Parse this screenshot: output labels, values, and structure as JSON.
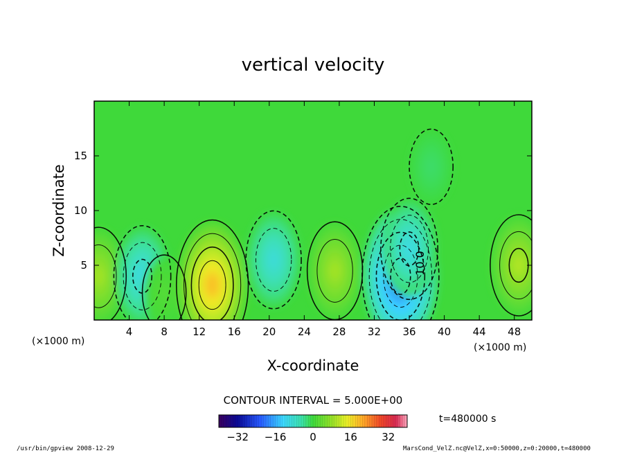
{
  "chart_data": {
    "type": "heatmap",
    "title": "vertical velocity",
    "xlabel": "X-coordinate",
    "ylabel": "Z-coordinate",
    "x_unit": "(×1000 m)",
    "y_unit": "(×1000 m)",
    "xlim": [
      0,
      50
    ],
    "ylim": [
      0,
      20
    ],
    "x_ticks": [
      "4",
      "8",
      "12",
      "16",
      "20",
      "24",
      "28",
      "32",
      "36",
      "40",
      "44",
      "48"
    ],
    "y_ticks": [
      "5",
      "10",
      "15"
    ],
    "contour_interval_label": "CONTOUR INTERVAL = 5.000E+00",
    "contour_label": "10.0",
    "time_label": "t=480000 s",
    "colorbar": {
      "range": [
        -40,
        40
      ],
      "tick_labels": [
        "−32",
        "−16",
        "0",
        "16",
        "32"
      ],
      "tick_values": [
        -32,
        -16,
        0,
        16,
        32
      ]
    },
    "features": [
      {
        "x": 0.5,
        "z": 4.0,
        "w": 9
      },
      {
        "x": 5.5,
        "z": 4.0,
        "w": -10
      },
      {
        "x": 8.0,
        "z": 2.5,
        "w": 2
      },
      {
        "x": 13.5,
        "z": 3.2,
        "w": 19
      },
      {
        "x": 20.5,
        "z": 5.5,
        "w": -9
      },
      {
        "x": 27.5,
        "z": 4.5,
        "w": 9
      },
      {
        "x": 35.0,
        "z": 4.0,
        "w": -22
      },
      {
        "x": 36.0,
        "z": 6.5,
        "w": -10
      },
      {
        "x": 48.5,
        "z": 5.0,
        "w": 10
      },
      {
        "x": 38.5,
        "z": 14.0,
        "w": -2
      }
    ],
    "footer_left": "/usr/bin/gpview   2008-12-29",
    "footer_right": "MarsCond_VelZ.nc@VelZ,x=0:50000,z=0:20000,t=480000"
  }
}
